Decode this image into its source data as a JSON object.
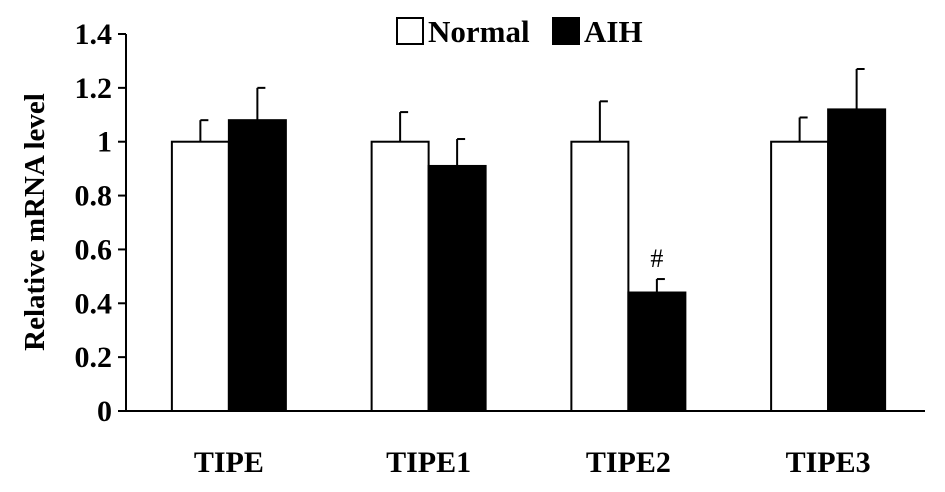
{
  "chart_data": {
    "type": "bar",
    "title": "",
    "xlabel": "",
    "ylabel": "Relative mRNA level",
    "ylim": [
      0,
      1.4
    ],
    "yticks": [
      "0",
      "0.2",
      "0.4",
      "0.6",
      "0.8",
      "1",
      "1.2",
      "1.4"
    ],
    "categories": [
      "TIPE",
      "TIPE1",
      "TIPE2",
      "TIPE3"
    ],
    "series": [
      {
        "name": "Normal",
        "color": "#ffffff",
        "values": [
          1.0,
          1.0,
          1.0,
          1.0
        ],
        "errors": [
          0.08,
          0.11,
          0.15,
          0.09
        ]
      },
      {
        "name": "AIH",
        "color": "#000000",
        "values": [
          1.08,
          0.91,
          0.44,
          1.12
        ],
        "errors": [
          0.12,
          0.1,
          0.05,
          0.15
        ]
      }
    ],
    "annotations": [
      {
        "text": "#",
        "category": "TIPE2",
        "series": "AIH"
      }
    ],
    "legend_position": "top-center",
    "grid": false
  }
}
